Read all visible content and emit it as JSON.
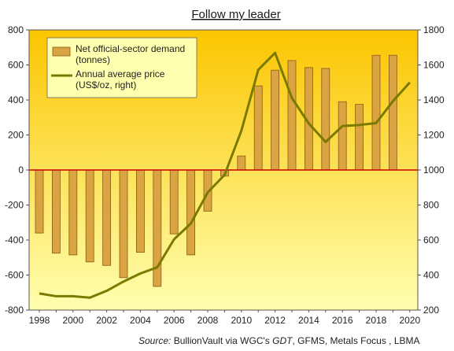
{
  "chart_data": {
    "type": "bar",
    "title": "Follow my leader",
    "x": [
      1998,
      1999,
      2000,
      2001,
      2002,
      2003,
      2004,
      2005,
      2006,
      2007,
      2008,
      2009,
      2010,
      2011,
      2012,
      2013,
      2014,
      2015,
      2016,
      2017,
      2018,
      2019,
      2020
    ],
    "x_tick_labels": [
      "1998",
      "2000",
      "2002",
      "2004",
      "2006",
      "2008",
      "2010",
      "2012",
      "2014",
      "2016",
      "2018",
      "2020"
    ],
    "ylim_left": [
      -800,
      800
    ],
    "yticks_left": [
      -800,
      -600,
      -400,
      -200,
      0,
      200,
      400,
      600,
      800
    ],
    "ylim_right": [
      200,
      1800
    ],
    "yticks_right": [
      200,
      400,
      600,
      800,
      1000,
      1200,
      1400,
      1600,
      1800
    ],
    "series": [
      {
        "name": "Net official-sector demand (tonnes)",
        "type": "bar",
        "axis": "left",
        "values": [
          -360,
          -475,
          -485,
          -525,
          -545,
          -615,
          -470,
          -665,
          -365,
          -485,
          -235,
          -35,
          80,
          480,
          570,
          625,
          585,
          580,
          390,
          375,
          655,
          655,
          null
        ]
      },
      {
        "name": "Annual average price (US$/oz, right)",
        "type": "line",
        "axis": "right",
        "values": [
          295,
          279,
          279,
          271,
          310,
          363,
          409,
          444,
          604,
          695,
          872,
          972,
          1225,
          1572,
          1669,
          1411,
          1266,
          1160,
          1251,
          1257,
          1268,
          1393,
          1500
        ]
      }
    ],
    "legend_position": "top-left",
    "grid": false,
    "colors": {
      "bar_fill": "#d9a441",
      "bar_stroke": "#8a5a14",
      "line": "#7a7a00",
      "zero_line": "#cc0000",
      "bg_top": "#fbc500",
      "bg_bottom": "#ffffb0"
    },
    "source": {
      "prefix": "Source:",
      "text_1": " BullionVault via WGC's ",
      "gdt": "GDT",
      "text_2": ", GFMS, Metals Focus , LBMA"
    }
  }
}
